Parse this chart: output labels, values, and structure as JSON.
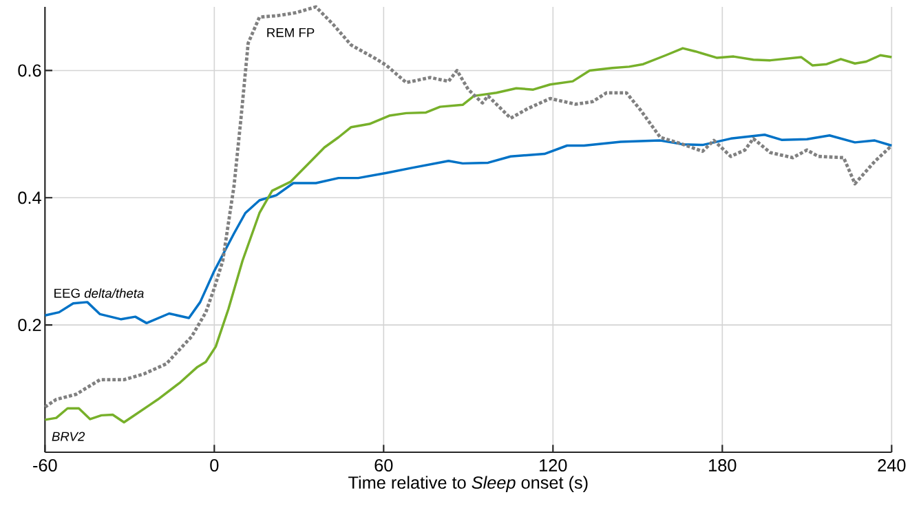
{
  "chart_data": {
    "type": "line",
    "xlabel": "Time relative to *Sleep* onset (s)",
    "xlim": [
      -60,
      240
    ],
    "xticks": [
      -60,
      0,
      60,
      120,
      180,
      240
    ],
    "ylim": [
      0,
      0.7
    ],
    "yticks": [
      0.2,
      0.4,
      0.6
    ],
    "grid": true,
    "marker": "none",
    "series": [
      {
        "name": "EEG *delta/theta*",
        "color": "#0072c6",
        "line_style": "solid",
        "x": [
          -60,
          -55,
          -50,
          -45,
          -40.5,
          -33,
          -28,
          -24,
          -16,
          -9,
          -5,
          0,
          7,
          11,
          16,
          22,
          28,
          36,
          44,
          51,
          61,
          70,
          83,
          88,
          97,
          105,
          117,
          125,
          131,
          144,
          158,
          166,
          173,
          183,
          195,
          201,
          210,
          218,
          227,
          234,
          240
        ],
        "values": [
          0.215,
          0.22,
          0.234,
          0.236,
          0.217,
          0.209,
          0.213,
          0.203,
          0.218,
          0.211,
          0.236,
          0.285,
          0.344,
          0.376,
          0.396,
          0.404,
          0.423,
          0.423,
          0.431,
          0.431,
          0.439,
          0.447,
          0.458,
          0.454,
          0.455,
          0.465,
          0.469,
          0.482,
          0.482,
          0.488,
          0.49,
          0.484,
          0.483,
          0.493,
          0.499,
          0.491,
          0.492,
          0.498,
          0.487,
          0.49,
          0.482
        ]
      },
      {
        "name": "*BRV2*",
        "color": "#77b02a",
        "line_style": "solid",
        "x": [
          -60,
          -56,
          -52,
          -48,
          -44,
          -40,
          -36,
          -32,
          -29,
          -23,
          -20,
          -12,
          -6,
          -3,
          0.5,
          5,
          10,
          16,
          20.5,
          27,
          33,
          39,
          44,
          48.5,
          55,
          62,
          68,
          75,
          80,
          88,
          92,
          100,
          107,
          113,
          119,
          127,
          133,
          141,
          147,
          152,
          160,
          166,
          170.5,
          178,
          184,
          191,
          197,
          208,
          212,
          217,
          222,
          227,
          231,
          236,
          240
        ],
        "values": [
          0.051,
          0.054,
          0.069,
          0.069,
          0.052,
          0.058,
          0.059,
          0.047,
          0.056,
          0.074,
          0.083,
          0.11,
          0.134,
          0.142,
          0.166,
          0.225,
          0.301,
          0.376,
          0.411,
          0.425,
          0.452,
          0.479,
          0.495,
          0.511,
          0.516,
          0.529,
          0.533,
          0.534,
          0.543,
          0.546,
          0.56,
          0.565,
          0.572,
          0.57,
          0.578,
          0.583,
          0.6,
          0.604,
          0.606,
          0.61,
          0.624,
          0.635,
          0.63,
          0.62,
          0.622,
          0.617,
          0.616,
          0.621,
          0.608,
          0.61,
          0.618,
          0.611,
          0.614,
          0.624,
          0.621
        ]
      },
      {
        "name": "REM FP",
        "color": "#808080",
        "line_style": "dotted",
        "x": [
          -60,
          -56,
          -49,
          -40.5,
          -32,
          -25,
          -17,
          -8,
          -3,
          0,
          3,
          7,
          9.5,
          12,
          16,
          22,
          29,
          36,
          42,
          48.5,
          57,
          61,
          68,
          76.5,
          83,
          86,
          90,
          95,
          97,
          105,
          111,
          119,
          128,
          134,
          139,
          146,
          151,
          158,
          166,
          173,
          177,
          183,
          188,
          191,
          197,
          205,
          210,
          214,
          223,
          227,
          234,
          240
        ],
        "values": [
          0.071,
          0.083,
          0.091,
          0.114,
          0.114,
          0.123,
          0.139,
          0.182,
          0.22,
          0.258,
          0.301,
          0.419,
          0.527,
          0.643,
          0.684,
          0.686,
          0.691,
          0.7,
          0.673,
          0.64,
          0.619,
          0.608,
          0.581,
          0.589,
          0.583,
          0.6,
          0.57,
          0.549,
          0.56,
          0.525,
          0.54,
          0.556,
          0.547,
          0.551,
          0.565,
          0.565,
          0.538,
          0.495,
          0.484,
          0.473,
          0.49,
          0.465,
          0.475,
          0.493,
          0.471,
          0.463,
          0.475,
          0.465,
          0.463,
          0.422,
          0.457,
          0.482
        ]
      }
    ]
  }
}
